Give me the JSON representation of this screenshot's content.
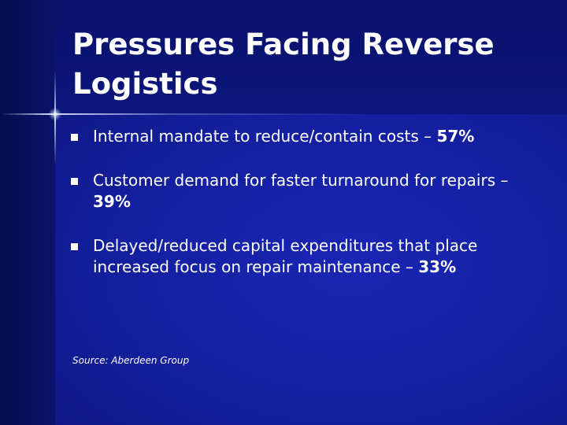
{
  "slide": {
    "title": "Pressures Facing Reverse Logistics",
    "bullets": [
      {
        "text": "Internal mandate to reduce/contain costs – ",
        "value": "57%"
      },
      {
        "text": "Customer demand for faster turnaround for repairs – ",
        "value": "39%"
      },
      {
        "text": "Delayed/reduced capital expenditures that place increased focus on repair maintenance – ",
        "value": "33%"
      }
    ],
    "source": "Source:  Aberdeen Group"
  },
  "colors": {
    "background": "#1420a0",
    "text": "#ffffff"
  }
}
